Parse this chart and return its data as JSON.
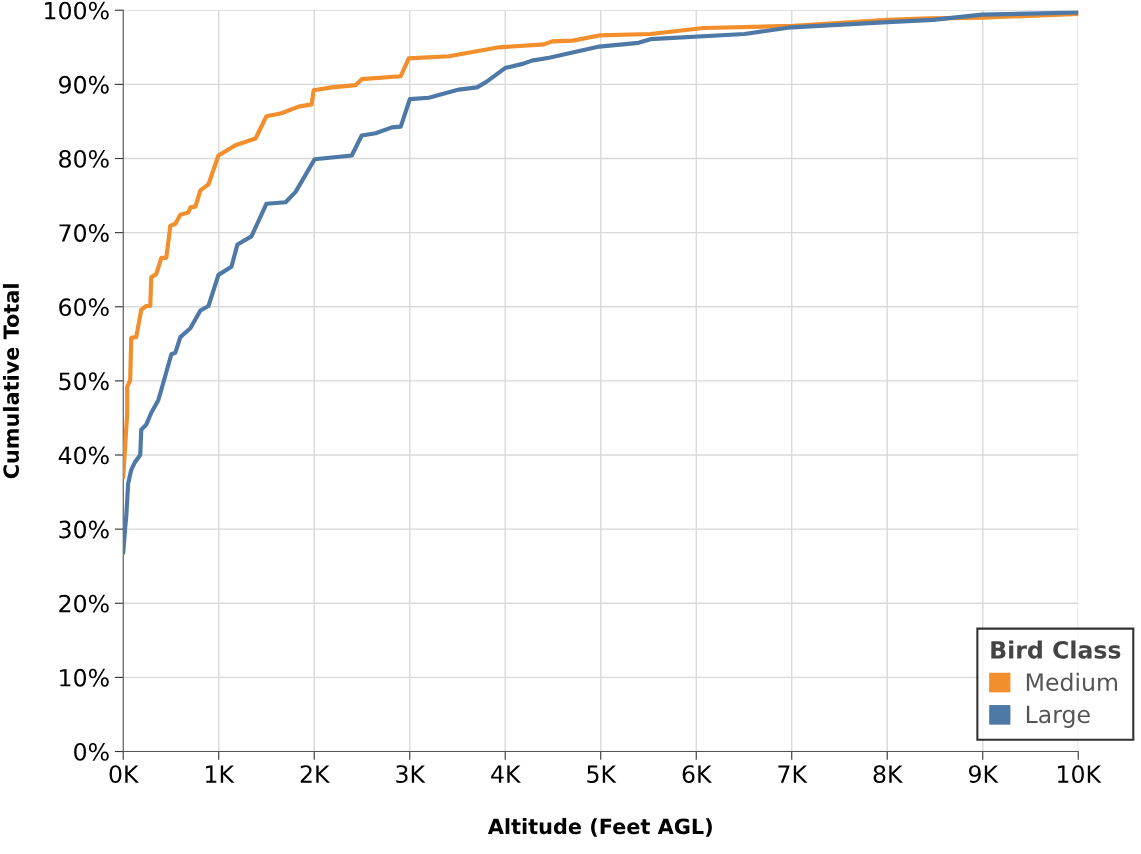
{
  "chart_data": {
    "type": "line",
    "xlabel": "Altitude (Feet AGL)",
    "ylabel": "Cumulative Total",
    "legend_title": "Bird Class",
    "legend": "bottom right",
    "grid": true,
    "marker": "none",
    "line_style": "solid",
    "xlim": [
      0,
      10000
    ],
    "ylim": [
      0,
      100
    ],
    "xticks": [
      {
        "value": 0,
        "label": "0K"
      },
      {
        "value": 1000,
        "label": "1K"
      },
      {
        "value": 2000,
        "label": "2K"
      },
      {
        "value": 3000,
        "label": "3K"
      },
      {
        "value": 4000,
        "label": "4K"
      },
      {
        "value": 5000,
        "label": "5K"
      },
      {
        "value": 6000,
        "label": "6K"
      },
      {
        "value": 7000,
        "label": "7K"
      },
      {
        "value": 8000,
        "label": "8K"
      },
      {
        "value": 9000,
        "label": "9K"
      },
      {
        "value": 10000,
        "label": "10K"
      }
    ],
    "yticks": [
      {
        "value": 0,
        "label": "0%"
      },
      {
        "value": 10,
        "label": "10%"
      },
      {
        "value": 20,
        "label": "20%"
      },
      {
        "value": 30,
        "label": "30%"
      },
      {
        "value": 40,
        "label": "40%"
      },
      {
        "value": 50,
        "label": "50%"
      },
      {
        "value": 60,
        "label": "60%"
      },
      {
        "value": 70,
        "label": "70%"
      },
      {
        "value": 80,
        "label": "80%"
      },
      {
        "value": 90,
        "label": "90%"
      },
      {
        "value": 100,
        "label": "100%"
      }
    ],
    "series": [
      {
        "name": "Medium",
        "color": "#f28e2b",
        "x": [
          0,
          42,
          42,
          73,
          84,
          136,
          189,
          241,
          283,
          294,
          346,
          399,
          451,
          493,
          546,
          598,
          682,
          703,
          756,
          808,
          892,
          997,
          1175,
          1385,
          1500,
          1658,
          1836,
          1973,
          1994,
          2183,
          2434,
          2497,
          2906,
          2990,
          3410,
          3935,
          4407,
          4491,
          4707,
          4985,
          5520,
          6076,
          7020,
          8006,
          8437,
          8993,
          10000
        ],
        "values": [
          37,
          45.7,
          49.2,
          50.1,
          55.8,
          55.9,
          59.6,
          60.1,
          60.1,
          64.0,
          64.4,
          66.6,
          66.6,
          70.9,
          71.2,
          72.4,
          72.7,
          73.4,
          73.5,
          75.7,
          76.5,
          80.4,
          81.8,
          82.7,
          85.7,
          86.1,
          87.0,
          87.3,
          89.2,
          89.6,
          89.9,
          90.7,
          91.1,
          93.5,
          93.8,
          95.0,
          95.4,
          95.8,
          95.9,
          96.6,
          96.8,
          97.6,
          97.9,
          98.7,
          98.9,
          99.0,
          99.5
        ]
      },
      {
        "name": "Large",
        "color": "#4e79a7",
        "x": [
          0,
          21,
          31,
          52,
          84,
          126,
          178,
          189,
          241,
          294,
          367,
          399,
          504,
          546,
          598,
          703,
          808,
          892,
          997,
          1133,
          1196,
          1343,
          1500,
          1700,
          1805,
          2004,
          2393,
          2497,
          2644,
          2812,
          2906,
          3001,
          3200,
          3515,
          3704,
          3799,
          3998,
          4192,
          4278,
          4460,
          4985,
          5394,
          5520,
          6506,
          6999,
          8006,
          8479,
          8993,
          10000
        ],
        "values": [
          26.8,
          30.3,
          31.6,
          36.2,
          38.0,
          39.1,
          40.0,
          43.4,
          44.1,
          45.7,
          47.4,
          48.8,
          53.6,
          53.8,
          55.9,
          57.1,
          59.5,
          60.1,
          64.3,
          65.4,
          68.4,
          69.5,
          73.9,
          74.1,
          75.5,
          79.9,
          80.4,
          83.1,
          83.4,
          84.2,
          84.3,
          88.0,
          88.2,
          89.3,
          89.6,
          90.3,
          92.2,
          92.8,
          93.2,
          93.6,
          95.1,
          95.6,
          96.1,
          96.8,
          97.7,
          98.4,
          98.7,
          99.4,
          99.7
        ]
      }
    ]
  }
}
